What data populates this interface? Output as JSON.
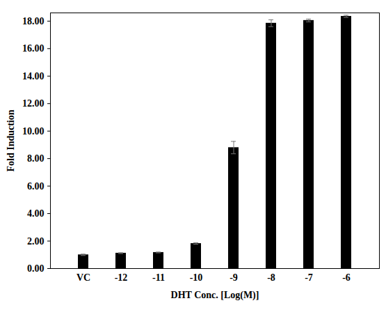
{
  "chart_data": {
    "type": "bar",
    "x_label": "DHT Conc. [Log(M)]",
    "y_label": "Fold Induction",
    "categories": [
      "VC",
      "-12",
      "-11",
      "-10",
      "-9",
      "-8",
      "-7",
      "-6"
    ],
    "values": [
      1.0,
      1.12,
      1.17,
      1.82,
      8.8,
      17.85,
      18.05,
      18.35
    ],
    "errors": [
      0.05,
      0.03,
      0.03,
      0.05,
      0.45,
      0.25,
      0.1,
      0.08
    ],
    "color": "#000000",
    "ylim": [
      0,
      18.6
    ],
    "yticks": [
      {
        "value": 0,
        "label": "0.00"
      },
      {
        "value": 2,
        "label": "2.00"
      },
      {
        "value": 4,
        "label": "4.00"
      },
      {
        "value": 6,
        "label": "6.00"
      },
      {
        "value": 8,
        "label": "8.00"
      },
      {
        "value": 10,
        "label": "10.00"
      },
      {
        "value": 12,
        "label": "12.00"
      },
      {
        "value": 14,
        "label": "14.00"
      },
      {
        "value": 16,
        "label": "16.00"
      },
      {
        "value": 18,
        "label": "18.00"
      }
    ],
    "grid": false
  }
}
